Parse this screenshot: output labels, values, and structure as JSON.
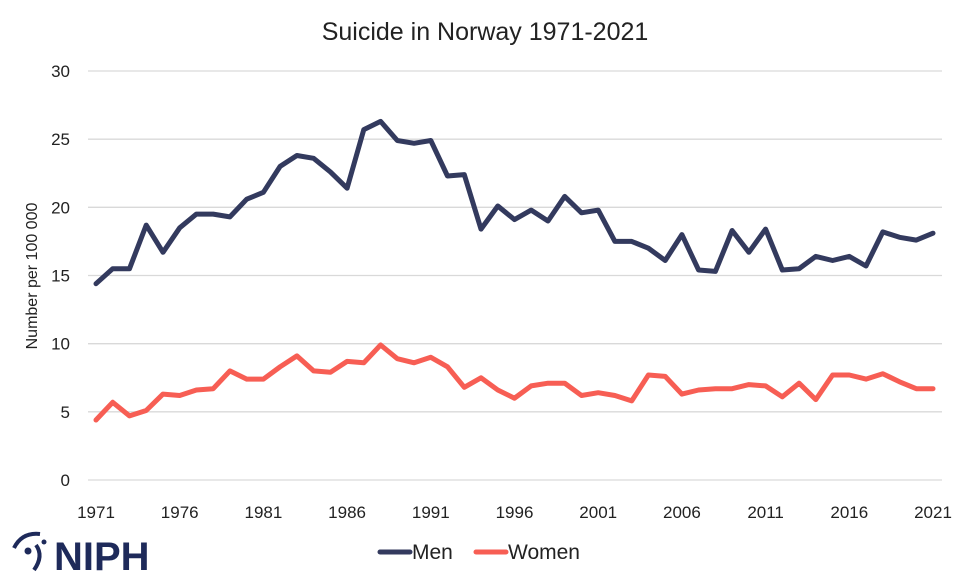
{
  "chart_data": {
    "type": "line",
    "title": "Suicide in Norway 1971-2021",
    "xlabel": "",
    "ylabel": "Number  per 100 000",
    "ylim": [
      0,
      30
    ],
    "yticks": [
      0,
      5,
      10,
      15,
      20,
      25,
      30
    ],
    "xlim": [
      1971,
      2021
    ],
    "xticks": [
      1971,
      1976,
      1981,
      1986,
      1991,
      1996,
      2001,
      2006,
      2011,
      2016,
      2021
    ],
    "grid": "horizontal",
    "legend_position": "bottom",
    "x": [
      1971,
      1972,
      1973,
      1974,
      1975,
      1976,
      1977,
      1978,
      1979,
      1980,
      1981,
      1982,
      1983,
      1984,
      1985,
      1986,
      1987,
      1988,
      1989,
      1990,
      1991,
      1992,
      1993,
      1994,
      1995,
      1996,
      1997,
      1998,
      1999,
      2000,
      2001,
      2002,
      2003,
      2004,
      2005,
      2006,
      2007,
      2008,
      2009,
      2010,
      2011,
      2012,
      2013,
      2014,
      2015,
      2016,
      2017,
      2018,
      2019,
      2020,
      2021
    ],
    "series": [
      {
        "name": "Men",
        "color": "#333a5e",
        "values": [
          14.4,
          15.5,
          15.5,
          18.7,
          16.7,
          18.5,
          19.5,
          19.5,
          19.3,
          20.6,
          21.1,
          23.0,
          23.8,
          23.6,
          22.6,
          21.4,
          25.7,
          26.3,
          24.9,
          24.7,
          24.9,
          22.3,
          22.4,
          18.4,
          20.1,
          19.1,
          19.8,
          19.0,
          20.8,
          19.6,
          19.8,
          17.5,
          17.5,
          17.0,
          16.1,
          18.0,
          15.4,
          15.3,
          18.3,
          16.7,
          18.4,
          15.4,
          15.5,
          16.4,
          16.1,
          16.4,
          15.7,
          18.2,
          17.8,
          17.6,
          18.1
        ]
      },
      {
        "name": "Women",
        "color": "#f75e54",
        "values": [
          4.4,
          5.7,
          4.7,
          5.1,
          6.3,
          6.2,
          6.6,
          6.7,
          8.0,
          7.4,
          7.4,
          8.3,
          9.1,
          8.0,
          7.9,
          8.7,
          8.6,
          9.9,
          8.9,
          8.6,
          9.0,
          8.3,
          6.8,
          7.5,
          6.6,
          6.0,
          6.9,
          7.1,
          7.1,
          6.2,
          6.4,
          6.2,
          5.8,
          7.7,
          7.6,
          6.3,
          6.6,
          6.7,
          6.7,
          7.0,
          6.9,
          6.1,
          7.1,
          5.9,
          7.7,
          7.7,
          7.4,
          7.8,
          7.2,
          6.7,
          6.7
        ]
      }
    ]
  },
  "logo": {
    "text": "NIPH"
  }
}
